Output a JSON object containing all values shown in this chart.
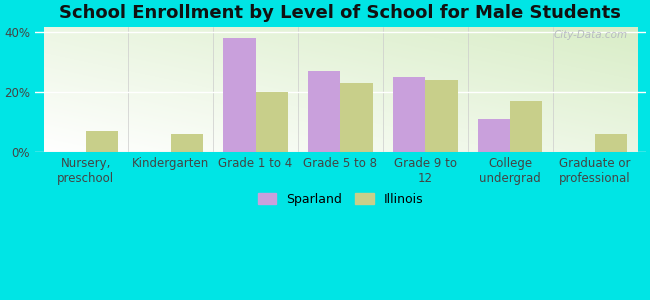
{
  "title": "School Enrollment by Level of School for Male Students",
  "categories": [
    "Nursery,\npreschool",
    "Kindergarten",
    "Grade 1 to 4",
    "Grade 5 to 8",
    "Grade 9 to\n12",
    "College\nundergrad",
    "Graduate or\nprofessional"
  ],
  "sparland": [
    0,
    0,
    38,
    27,
    25,
    11,
    0
  ],
  "illinois": [
    7,
    6,
    20,
    23,
    24,
    17,
    6
  ],
  "sparland_color": "#c9a0dc",
  "illinois_color": "#c8cf8a",
  "ylabel_ticks": [
    "0%",
    "20%",
    "40%"
  ],
  "yticks": [
    0,
    20,
    40
  ],
  "ylim": [
    0,
    42
  ],
  "background_color": "#00e5e5",
  "title_fontsize": 13,
  "tick_fontsize": 8.5,
  "legend_labels": [
    "Sparland",
    "Illinois"
  ],
  "bar_width": 0.38,
  "watermark": "City-Data.com"
}
